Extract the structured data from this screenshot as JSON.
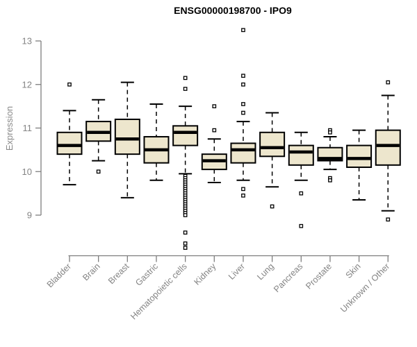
{
  "chart_data": {
    "type": "boxplot",
    "title": "ENSG00000198700 - IPO9",
    "ylabel": "Expression",
    "xlabel": "",
    "yticks": [
      9,
      10,
      11,
      12,
      13
    ],
    "ylim": [
      8.2,
      13.4
    ],
    "grid": false,
    "legend": null,
    "categories": [
      "Bladder",
      "Brain",
      "Breast",
      "Gastric",
      "Hematopoietic cells",
      "Kidney",
      "Liver",
      "Lung",
      "Pancreas",
      "Prostate",
      "Skin",
      "Unknown / Other"
    ],
    "boxes": [
      {
        "category": "Bladder",
        "whisker_low": 9.7,
        "q1": 10.4,
        "median": 10.6,
        "q3": 10.9,
        "whisker_high": 11.4,
        "outliers": [
          12.0
        ]
      },
      {
        "category": "Brain",
        "whisker_low": 10.25,
        "q1": 10.7,
        "median": 10.9,
        "q3": 11.15,
        "whisker_high": 11.65,
        "outliers": [
          10.0
        ]
      },
      {
        "category": "Breast",
        "whisker_low": 9.4,
        "q1": 10.4,
        "median": 10.75,
        "q3": 11.2,
        "whisker_high": 12.05,
        "outliers": []
      },
      {
        "category": "Gastric",
        "whisker_low": 9.8,
        "q1": 10.2,
        "median": 10.5,
        "q3": 10.8,
        "whisker_high": 11.55,
        "outliers": []
      },
      {
        "category": "Hematopoietic cells",
        "whisker_low": 9.95,
        "q1": 10.6,
        "median": 10.9,
        "q3": 11.05,
        "whisker_high": 11.5,
        "outliers": [
          12.15,
          11.9,
          9.9,
          9.85,
          9.8,
          9.75,
          9.7,
          9.65,
          9.6,
          9.55,
          9.5,
          9.45,
          9.4,
          9.35,
          9.3,
          9.25,
          9.2,
          9.15,
          9.1,
          9.05,
          9.0,
          8.6,
          8.35,
          8.25
        ]
      },
      {
        "category": "Kidney",
        "whisker_low": 9.75,
        "q1": 10.05,
        "median": 10.25,
        "q3": 10.4,
        "whisker_high": 10.75,
        "outliers": [
          11.5,
          10.95
        ]
      },
      {
        "category": "Liver",
        "whisker_low": 9.8,
        "q1": 10.2,
        "median": 10.5,
        "q3": 10.65,
        "whisker_high": 11.15,
        "outliers": [
          13.25,
          12.2,
          12.0,
          11.55,
          11.35,
          9.6,
          9.45
        ]
      },
      {
        "category": "Lung",
        "whisker_low": 9.65,
        "q1": 10.35,
        "median": 10.55,
        "q3": 10.9,
        "whisker_high": 11.35,
        "outliers": [
          9.2
        ]
      },
      {
        "category": "Pancreas",
        "whisker_low": 9.8,
        "q1": 10.15,
        "median": 10.45,
        "q3": 10.6,
        "whisker_high": 10.9,
        "outliers": [
          9.5,
          8.75
        ]
      },
      {
        "category": "Prostate",
        "whisker_low": 10.05,
        "q1": 10.25,
        "median": 10.3,
        "q3": 10.55,
        "whisker_high": 10.8,
        "outliers": [
          10.95,
          10.9,
          9.85,
          9.8
        ]
      },
      {
        "category": "Skin",
        "whisker_low": 9.35,
        "q1": 10.1,
        "median": 10.3,
        "q3": 10.6,
        "whisker_high": 10.95,
        "outliers": []
      },
      {
        "category": "Unknown / Other",
        "whisker_low": 9.1,
        "q1": 10.15,
        "median": 10.6,
        "q3": 10.95,
        "whisker_high": 11.75,
        "outliers": [
          12.05,
          8.9
        ]
      }
    ],
    "colors": {
      "background": "#FFFFFF",
      "box_fill": "#EDE6CD",
      "box_stroke": "#000000",
      "median": "#000000",
      "whisker": "#000000",
      "axis": "#7E7E7E",
      "tick_label": "#848484",
      "title": "#000000"
    }
  }
}
